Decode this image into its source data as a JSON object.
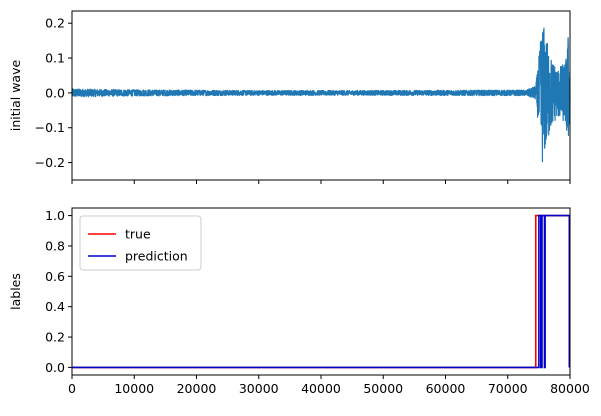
{
  "chart_data": [
    {
      "type": "line",
      "ylabel": "initial wave",
      "xlim": [
        0,
        80000
      ],
      "ylim": [
        -0.25,
        0.235
      ],
      "yticks": [
        -0.2,
        -0.1,
        0.0,
        0.1,
        0.2
      ],
      "ytick_labels": [
        "−0.2",
        "−0.1",
        "0.0",
        "0.1",
        "0.2"
      ],
      "xticks": [
        0,
        10000,
        20000,
        30000,
        40000,
        50000,
        60000,
        70000,
        80000
      ],
      "show_xtick_labels": false,
      "series": [
        {
          "color": "#1f77b4",
          "envelope": [
            {
              "x": 0,
              "amp": 0.012
            },
            {
              "x": 5000,
              "amp": 0.01
            },
            {
              "x": 10000,
              "amp": 0.009
            },
            {
              "x": 30000,
              "amp": 0.007
            },
            {
              "x": 50000,
              "amp": 0.007
            },
            {
              "x": 68000,
              "amp": 0.008
            },
            {
              "x": 73000,
              "amp": 0.008
            },
            {
              "x": 74500,
              "amp": 0.02
            },
            {
              "x": 75100,
              "amp": 0.12
            },
            {
              "x": 75600,
              "amp": 0.21
            },
            {
              "x": 76200,
              "amp": 0.16
            },
            {
              "x": 77000,
              "amp": 0.1
            },
            {
              "x": 78000,
              "amp": 0.07
            },
            {
              "x": 79300,
              "amp": 0.09
            },
            {
              "x": 79700,
              "amp": 0.17
            },
            {
              "x": 80000,
              "amp": 0.05
            }
          ]
        }
      ]
    },
    {
      "type": "line",
      "ylabel": "lables",
      "xlim": [
        0,
        80000
      ],
      "ylim": [
        -0.05,
        1.05
      ],
      "yticks": [
        0.0,
        0.2,
        0.4,
        0.6,
        0.8,
        1.0
      ],
      "ytick_labels": [
        "0.0",
        "0.2",
        "0.4",
        "0.6",
        "0.8",
        "1.0"
      ],
      "xticks": [
        0,
        10000,
        20000,
        30000,
        40000,
        50000,
        60000,
        70000,
        80000
      ],
      "xtick_labels": [
        "0",
        "10000",
        "20000",
        "30000",
        "40000",
        "50000",
        "60000",
        "70000",
        "80000"
      ],
      "legend": {
        "placement": "upper-left"
      },
      "series": [
        {
          "name": "true",
          "color": "#ff0000",
          "x": [
            0,
            74500,
            74500,
            79900,
            79900
          ],
          "y": [
            0,
            0,
            1,
            1,
            0
          ]
        },
        {
          "name": "prediction",
          "color": "#0000cc",
          "x": [
            0,
            75000,
            75000,
            75300,
            75300,
            75500,
            75500,
            75900,
            75900,
            76000,
            76000,
            79900,
            79900
          ],
          "y": [
            0,
            0,
            1,
            1,
            0,
            0,
            1,
            1,
            0,
            0,
            1,
            1,
            0
          ]
        }
      ]
    }
  ]
}
